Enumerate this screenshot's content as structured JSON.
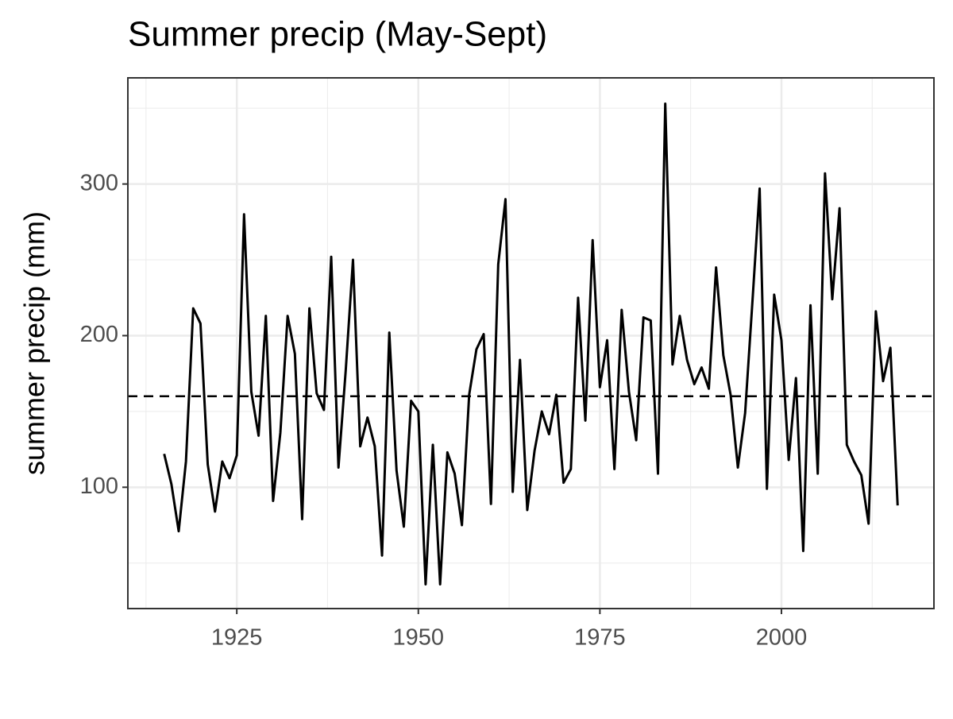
{
  "chart_data": {
    "type": "line",
    "title": "Summer precip (May-Sept)",
    "y_label": "summer precip (mm)",
    "x": [
      1915,
      1916,
      1917,
      1918,
      1919,
      1920,
      1921,
      1922,
      1923,
      1924,
      1925,
      1926,
      1927,
      1928,
      1929,
      1930,
      1931,
      1932,
      1933,
      1934,
      1935,
      1936,
      1937,
      1938,
      1939,
      1940,
      1941,
      1942,
      1943,
      1944,
      1945,
      1946,
      1947,
      1948,
      1949,
      1950,
      1951,
      1952,
      1953,
      1954,
      1955,
      1956,
      1957,
      1958,
      1959,
      1960,
      1961,
      1962,
      1963,
      1964,
      1965,
      1966,
      1967,
      1968,
      1969,
      1970,
      1971,
      1972,
      1973,
      1974,
      1975,
      1976,
      1977,
      1978,
      1979,
      1980,
      1981,
      1982,
      1983,
      1984,
      1985,
      1986,
      1987,
      1988,
      1989,
      1990,
      1991,
      1992,
      1993,
      1994,
      1995,
      1996,
      1997,
      1998,
      1999,
      2000,
      2001,
      2002,
      2003,
      2004,
      2005,
      2006,
      2007,
      2008,
      2009,
      2010,
      2011,
      2012,
      2013,
      2014,
      2015,
      2016
    ],
    "values": [
      122,
      102,
      71,
      117,
      218,
      208,
      115,
      84,
      117,
      106,
      121,
      280,
      163,
      134,
      213,
      91,
      136,
      213,
      188,
      79,
      218,
      162,
      151,
      252,
      113,
      177,
      250,
      127,
      146,
      127,
      55,
      202,
      111,
      74,
      157,
      150,
      36,
      128,
      36,
      123,
      109,
      75,
      161,
      191,
      201,
      89,
      247,
      290,
      97,
      184,
      85,
      124,
      150,
      135,
      161,
      103,
      112,
      225,
      144,
      263,
      166,
      197,
      112,
      217,
      163,
      131,
      212,
      210,
      109,
      353,
      181,
      213,
      184,
      168,
      179,
      165,
      245,
      187,
      161,
      113,
      149,
      222,
      297,
      99,
      227,
      197,
      118,
      172,
      58,
      220,
      109,
      307,
      224,
      284,
      128,
      117,
      108,
      76,
      216,
      170,
      192,
      88
    ],
    "color": "#000000",
    "hline": 160,
    "xlim": [
      1910,
      2021
    ],
    "xticks": [
      1925,
      1950,
      1975,
      2000
    ],
    "x_minor_ticks": [
      1912.5,
      1937.5,
      1962.5,
      1987.5,
      2012.5
    ],
    "ylim": [
      20,
      370
    ],
    "yticks": [
      100,
      200,
      300
    ],
    "y_minor_ticks": [
      50,
      150,
      250,
      350
    ],
    "grid": true
  }
}
